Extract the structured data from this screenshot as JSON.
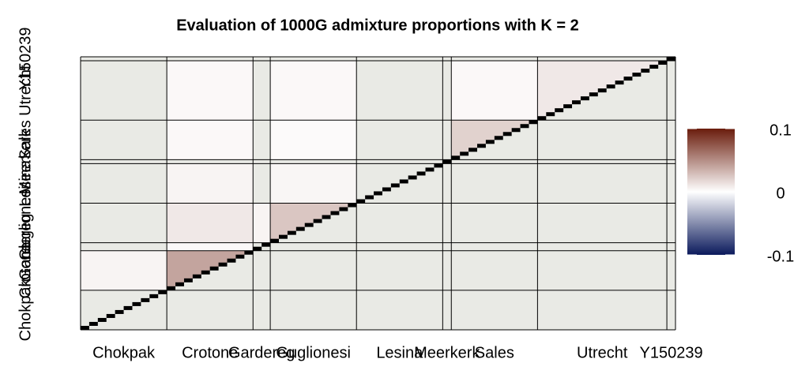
{
  "chart_data": {
    "type": "heatmap",
    "title": "Evaluation of 1000G admixture proportions with K = 2",
    "groups": [
      "Chokpak",
      "Crotone",
      "Gardereg",
      "Guglionesi",
      "Lesina",
      "Meerkerk",
      "Sales",
      "Utrecht",
      "Y150239"
    ],
    "group_sizes": [
      10,
      10,
      2,
      10,
      10,
      1,
      10,
      15,
      1
    ],
    "values": [
      [
        null,
        null,
        null,
        null,
        null,
        null,
        null,
        null,
        null
      ],
      [
        0.005,
        0.04,
        null,
        null,
        null,
        null,
        null,
        null,
        null
      ],
      [
        null,
        0.003,
        null,
        null,
        null,
        null,
        null,
        null,
        null
      ],
      [
        null,
        0.01,
        0.005,
        0.025,
        null,
        null,
        null,
        null,
        null
      ],
      [
        null,
        0.005,
        null,
        0.004,
        null,
        null,
        null,
        null,
        null
      ],
      [
        null,
        null,
        null,
        null,
        null,
        null,
        null,
        null,
        null
      ],
      [
        null,
        0.003,
        null,
        0.002,
        null,
        null,
        0.02,
        null,
        null
      ],
      [
        null,
        0.003,
        null,
        0.003,
        null,
        null,
        0.003,
        0.01,
        null
      ],
      [
        null,
        null,
        null,
        null,
        null,
        null,
        null,
        null,
        null
      ]
    ],
    "clim": [
      -0.1,
      0.1
    ],
    "colorbar_ticks": [
      0.1,
      0,
      -0.1
    ],
    "colors": {
      "low": "#0b1a5c",
      "mid": "#ffffff",
      "high": "#6a1c0c",
      "na": "#e9eae5"
    }
  }
}
